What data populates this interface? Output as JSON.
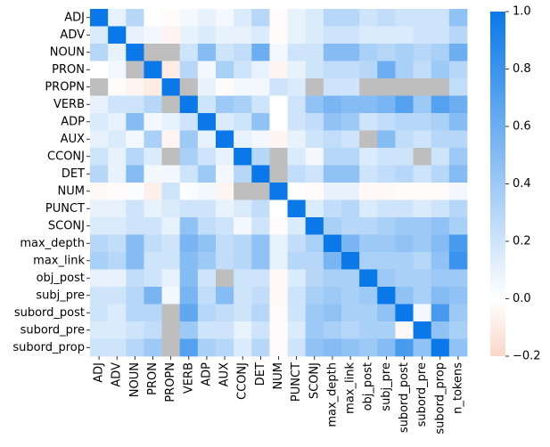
{
  "chart_data": {
    "type": "heatmap",
    "title": "",
    "xlabel": "",
    "ylabel": "",
    "row_labels": [
      "ADJ",
      "ADV",
      "NOUN",
      "PRON",
      "PROPN",
      "VERB",
      "ADP",
      "AUX",
      "CCONJ",
      "DET",
      "NUM",
      "PUNCT",
      "SCONJ",
      "max_depth",
      "max_link",
      "obj_post",
      "subj_pre",
      "subord_post",
      "subord_pre",
      "subord_prop"
    ],
    "col_labels": [
      "ADJ",
      "ADV",
      "NOUN",
      "PRON",
      "PROPN",
      "VERB",
      "ADP",
      "AUX",
      "CCONJ",
      "DET",
      "NUM",
      "PUNCT",
      "SCONJ",
      "max_depth",
      "max_link",
      "obj_post",
      "subj_pre",
      "subord_post",
      "subord_pre",
      "subord_prop",
      "n_tokens"
    ],
    "values": [
      [
        1.0,
        0.1,
        0.3,
        0.0,
        -0.02,
        0.05,
        0.1,
        0.05,
        0.15,
        0.3,
        -0.02,
        0.1,
        0.15,
        0.3,
        0.3,
        0.2,
        0.25,
        0.2,
        0.2,
        0.2,
        0.45
      ],
      [
        0.15,
        1.0,
        0.1,
        0.05,
        -0.05,
        0.1,
        0.15,
        0.1,
        0.1,
        0.15,
        -0.02,
        0.1,
        0.15,
        0.2,
        0.2,
        0.15,
        0.15,
        0.15,
        0.2,
        0.2,
        0.3
      ],
      [
        0.3,
        0.1,
        1.0,
        null,
        null,
        0.2,
        0.5,
        0.2,
        0.25,
        0.6,
        0.05,
        0.2,
        0.2,
        0.5,
        0.5,
        0.35,
        0.3,
        0.35,
        0.3,
        0.35,
        0.6
      ],
      [
        0.0,
        0.05,
        null,
        1.0,
        -0.1,
        0.3,
        0.05,
        0.35,
        0.2,
        0.1,
        -0.05,
        0.1,
        0.2,
        0.25,
        0.25,
        0.3,
        0.6,
        0.35,
        0.25,
        0.4,
        0.3
      ],
      [
        null,
        -0.02,
        -0.05,
        -0.1,
        1.0,
        null,
        0.1,
        -0.02,
        0.05,
        0.05,
        0.2,
        0.15,
        null,
        0.2,
        0.2,
        null,
        null,
        null,
        null,
        null,
        0.25
      ],
      [
        0.1,
        0.2,
        0.2,
        0.3,
        null,
        1.0,
        0.2,
        0.4,
        0.35,
        0.2,
        0.0,
        0.2,
        0.45,
        0.55,
        0.5,
        0.5,
        0.55,
        0.7,
        0.4,
        0.7,
        0.6
      ],
      [
        0.15,
        0.1,
        0.5,
        0.05,
        0.1,
        0.2,
        1.0,
        0.15,
        0.2,
        0.45,
        0.0,
        0.2,
        0.25,
        0.45,
        0.4,
        0.2,
        0.25,
        0.3,
        0.3,
        0.35,
        0.5
      ],
      [
        0.1,
        0.15,
        0.05,
        0.35,
        -0.05,
        0.4,
        0.1,
        1.0,
        0.1,
        0.05,
        -0.05,
        0.1,
        0.2,
        0.25,
        0.2,
        null,
        0.5,
        0.25,
        0.2,
        0.3,
        0.3
      ],
      [
        0.2,
        0.1,
        0.3,
        0.15,
        null,
        0.35,
        0.2,
        0.1,
        1.0,
        0.3,
        null,
        0.15,
        0.05,
        0.3,
        0.3,
        0.15,
        0.2,
        0.2,
        null,
        0.2,
        0.4
      ],
      [
        0.3,
        0.1,
        0.5,
        0.05,
        0.05,
        0.2,
        0.4,
        0.05,
        0.3,
        1.0,
        null,
        0.25,
        0.2,
        0.45,
        0.45,
        0.2,
        0.25,
        0.3,
        0.2,
        0.3,
        0.5
      ],
      [
        -0.03,
        -0.02,
        0.02,
        -0.08,
        0.2,
        0.02,
        0.05,
        -0.05,
        null,
        null,
        1.0,
        0.0,
        -0.02,
        0.1,
        0.1,
        -0.03,
        -0.03,
        -0.02,
        -0.02,
        -0.02,
        0.05
      ],
      [
        0.1,
        0.1,
        0.2,
        0.1,
        0.15,
        0.2,
        0.2,
        0.1,
        0.15,
        0.25,
        0.0,
        1.0,
        0.15,
        0.25,
        0.3,
        0.15,
        0.2,
        0.2,
        0.15,
        0.2,
        0.3
      ],
      [
        0.15,
        0.15,
        0.2,
        0.2,
        0.1,
        0.45,
        0.25,
        0.2,
        0.05,
        0.2,
        -0.02,
        0.15,
        1.0,
        0.35,
        0.3,
        0.3,
        0.35,
        0.4,
        0.4,
        0.45,
        0.35
      ],
      [
        0.3,
        0.25,
        0.5,
        0.25,
        0.2,
        0.55,
        0.45,
        0.25,
        0.3,
        0.45,
        0.1,
        0.25,
        0.35,
        1.0,
        0.55,
        0.4,
        0.4,
        0.45,
        0.4,
        0.5,
        0.75
      ],
      [
        0.35,
        0.3,
        0.5,
        0.2,
        0.2,
        0.5,
        0.4,
        0.25,
        0.3,
        0.45,
        0.1,
        0.3,
        0.3,
        0.55,
        1.0,
        0.35,
        0.35,
        0.35,
        0.3,
        0.45,
        0.8
      ],
      [
        0.1,
        0.1,
        0.25,
        0.2,
        0.1,
        0.5,
        0.2,
        null,
        0.2,
        0.2,
        -0.03,
        0.15,
        0.3,
        0.35,
        0.35,
        1.0,
        0.4,
        0.35,
        0.35,
        0.4,
        0.4
      ],
      [
        0.2,
        0.2,
        0.3,
        0.55,
        0.05,
        0.55,
        0.25,
        0.5,
        0.2,
        0.25,
        -0.03,
        0.2,
        0.35,
        0.4,
        0.35,
        0.4,
        1.0,
        0.45,
        0.35,
        0.5,
        0.45
      ],
      [
        0.2,
        0.15,
        0.3,
        0.3,
        null,
        0.65,
        0.3,
        0.25,
        0.2,
        0.3,
        -0.02,
        0.2,
        0.4,
        0.45,
        0.35,
        0.35,
        0.45,
        1.0,
        0.05,
        0.75,
        0.4
      ],
      [
        0.15,
        0.15,
        0.2,
        0.25,
        null,
        0.4,
        0.2,
        0.2,
        0.1,
        0.2,
        -0.02,
        0.15,
        0.4,
        0.35,
        0.3,
        0.35,
        0.35,
        -0.03,
        1.0,
        0.45,
        0.35
      ],
      [
        0.2,
        0.2,
        0.3,
        0.4,
        null,
        0.7,
        0.35,
        0.3,
        0.15,
        0.3,
        -0.02,
        0.2,
        0.45,
        0.5,
        0.45,
        0.4,
        0.5,
        0.75,
        0.45,
        1.0,
        0.45
      ]
    ],
    "missing_value_note": "null cells are drawn in grey",
    "colorbar": {
      "vmin": -0.2,
      "vmax": 1.0,
      "ticks": [
        -0.2,
        0.0,
        0.2,
        0.4,
        0.6,
        0.8,
        1.0
      ],
      "tick_labels": [
        "−0.2",
        "0.0",
        "0.2",
        "0.4",
        "0.6",
        "0.8",
        "1.0"
      ],
      "colors": {
        "low": "#fbd7c9",
        "mid": "#ffffff",
        "high": "#0a78e8",
        "missing": "#bebebe"
      }
    }
  }
}
